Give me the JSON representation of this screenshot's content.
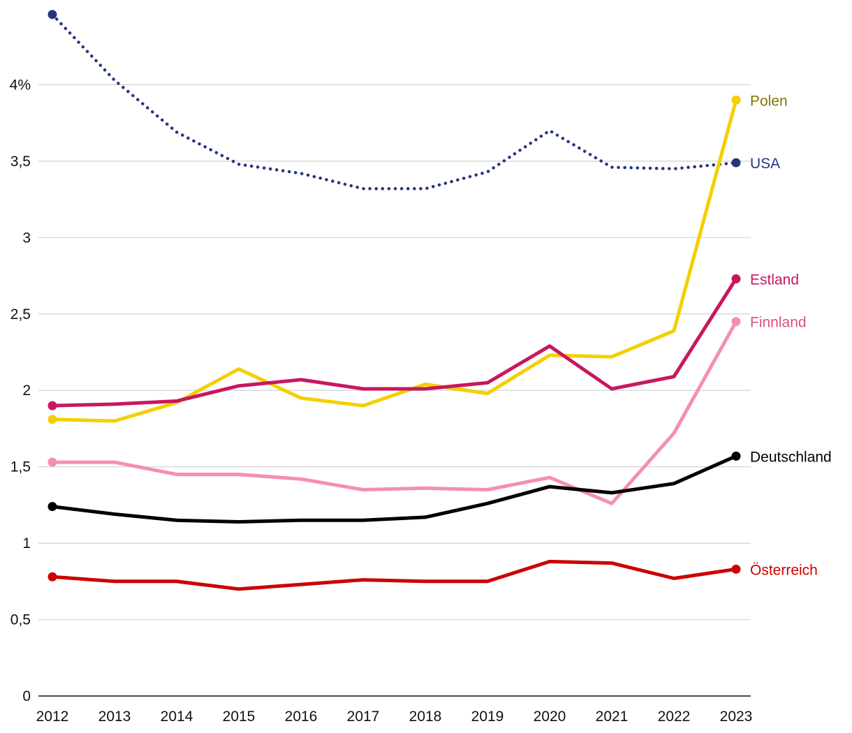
{
  "chart_data": {
    "type": "line",
    "title": "",
    "xlabel": "",
    "ylabel": "",
    "ylim": [
      0,
      4.5
    ],
    "grid": true,
    "x": [
      "2012",
      "2013",
      "2014",
      "2015",
      "2016",
      "2017",
      "2018",
      "2019",
      "2020",
      "2021",
      "2022",
      "2023"
    ],
    "y_ticks": [
      {
        "value": 0,
        "label": "0"
      },
      {
        "value": 0.5,
        "label": "0,5"
      },
      {
        "value": 1,
        "label": "1"
      },
      {
        "value": 1.5,
        "label": "1,5"
      },
      {
        "value": 2,
        "label": "2"
      },
      {
        "value": 2.5,
        "label": "2,5"
      },
      {
        "value": 3,
        "label": "3"
      },
      {
        "value": 3.5,
        "label": "3,5"
      },
      {
        "value": 4,
        "label": "4%"
      }
    ],
    "series": [
      {
        "name": "USA",
        "key": "usa",
        "color": "#27357e",
        "label_color": "#27357e",
        "dashed": true,
        "values": [
          4.46,
          4.03,
          3.69,
          3.48,
          3.42,
          3.32,
          3.32,
          3.43,
          3.7,
          3.46,
          3.45,
          3.49
        ]
      },
      {
        "name": "Polen",
        "key": "polen",
        "color": "#f5cf00",
        "label_color": "#857500",
        "dashed": false,
        "values": [
          1.81,
          1.8,
          1.92,
          2.14,
          1.95,
          1.9,
          2.04,
          1.98,
          2.23,
          2.22,
          2.39,
          3.9
        ]
      },
      {
        "name": "Estland",
        "key": "estland",
        "color": "#c8175f",
        "label_color": "#c8175f",
        "dashed": false,
        "values": [
          1.9,
          1.91,
          1.93,
          2.03,
          2.07,
          2.01,
          2.01,
          2.05,
          2.29,
          2.01,
          2.09,
          2.73
        ]
      },
      {
        "name": "Finnland",
        "key": "finnland",
        "color": "#f48fb1",
        "label_color": "#d9527f",
        "dashed": false,
        "values": [
          1.53,
          1.53,
          1.45,
          1.45,
          1.42,
          1.35,
          1.36,
          1.35,
          1.43,
          1.26,
          1.72,
          2.45
        ]
      },
      {
        "name": "Deutschland",
        "key": "deutschland",
        "color": "#000000",
        "label_color": "#000000",
        "dashed": false,
        "values": [
          1.24,
          1.19,
          1.15,
          1.14,
          1.15,
          1.15,
          1.17,
          1.26,
          1.37,
          1.33,
          1.39,
          1.57
        ]
      },
      {
        "name": "Österreich",
        "key": "oesterreich",
        "color": "#cc0000",
        "label_color": "#cc0000",
        "dashed": false,
        "values": [
          0.78,
          0.75,
          0.75,
          0.7,
          0.73,
          0.76,
          0.75,
          0.75,
          0.88,
          0.87,
          0.77,
          0.83
        ]
      }
    ]
  }
}
